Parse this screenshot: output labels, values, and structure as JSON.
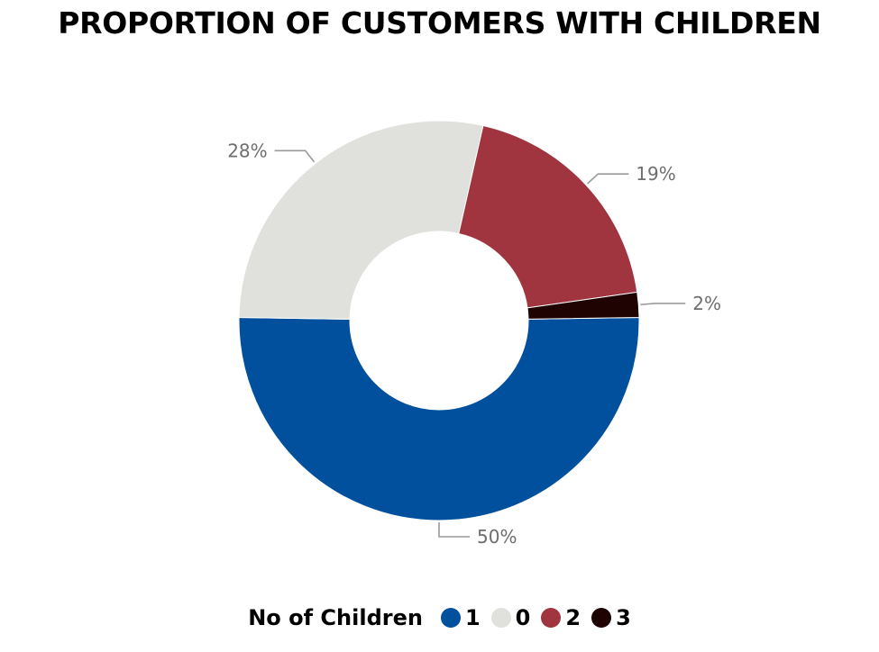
{
  "chart_data": {
    "type": "pie",
    "variant": "donut",
    "title": "PROPORTION OF CUSTOMERS WITH CHILDREN",
    "legend": {
      "title": "No of Children",
      "placement": "bottom"
    },
    "slices": [
      {
        "label": "1",
        "value": 50,
        "display": "50%",
        "color": "#00509e"
      },
      {
        "label": "0",
        "value": 28,
        "display": "28%",
        "color": "#e0e0dd"
      },
      {
        "label": "2",
        "value": 19,
        "display": "19%",
        "color": "#a0343f"
      },
      {
        "label": "3",
        "value": 2,
        "display": "2%",
        "color": "#1e0302"
      }
    ]
  }
}
